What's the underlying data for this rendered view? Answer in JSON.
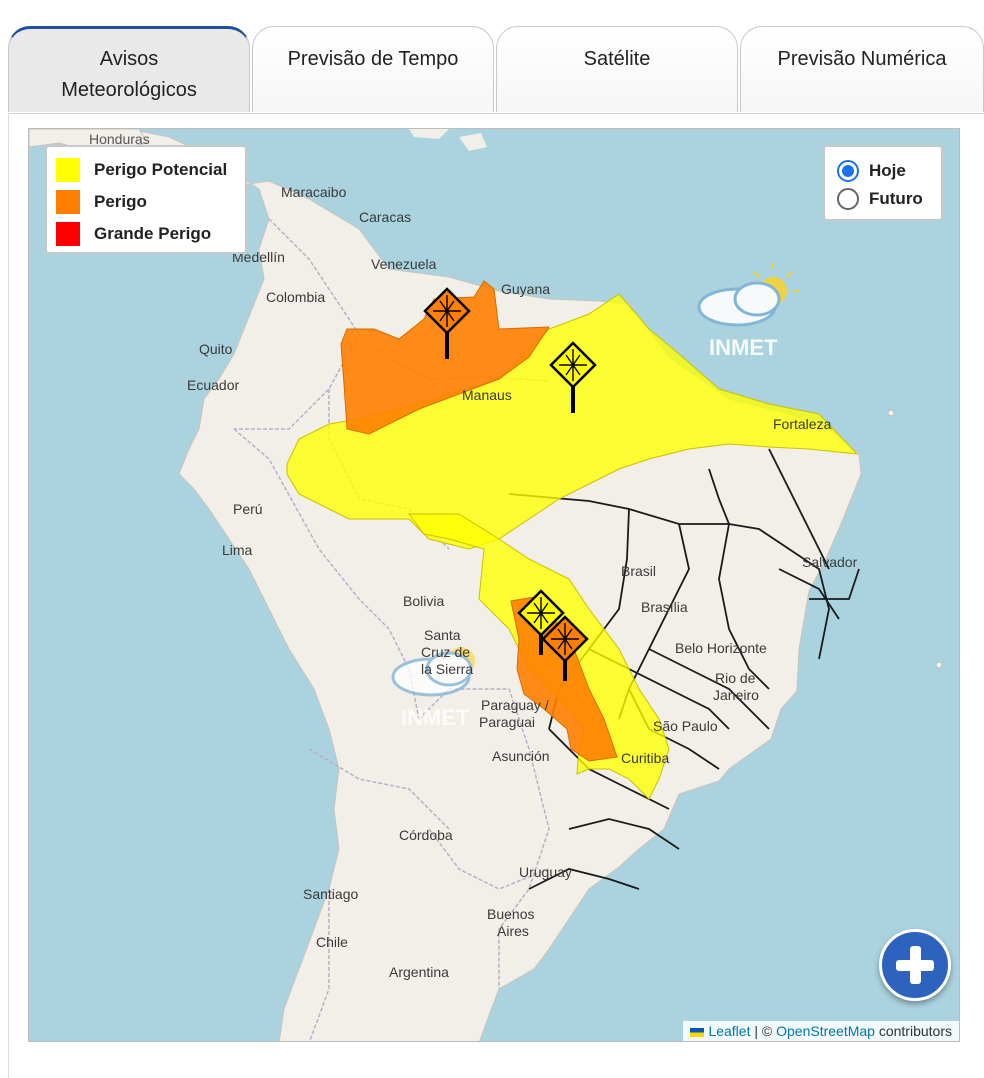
{
  "tabs": [
    {
      "label": "Avisos\nMeteorológicos",
      "active": true
    },
    {
      "label": "Previsão de Tempo",
      "active": false
    },
    {
      "label": "Satélite",
      "active": false
    },
    {
      "label": "Previsão Numérica",
      "active": false
    }
  ],
  "legend": {
    "items": [
      {
        "label": "Perigo Potencial",
        "color": "#ffff00"
      },
      {
        "label": "Perigo",
        "color": "#ff7f00"
      },
      {
        "label": "Grande Perigo",
        "color": "#ff0000"
      }
    ]
  },
  "period": {
    "options": [
      {
        "label": "Hoje",
        "checked": true
      },
      {
        "label": "Futuro",
        "checked": false
      }
    ]
  },
  "watermark": {
    "text": "INMET"
  },
  "places": {
    "honduras": "Honduras",
    "maracaibo": "Maracaibo",
    "caracas": "Caracas",
    "medellin": "Medellín",
    "venezuela": "Venezuela",
    "guyana": "Guyana",
    "colombia": "Colombia",
    "quito": "Quito",
    "ecuador": "Ecuador",
    "manaus": "Manaus",
    "fortaleza": "Fortaleza",
    "peru": "Perú",
    "lima": "Lima",
    "salvador": "Salvador",
    "brasil": "Brasil",
    "brasilia": "Brasília",
    "bolivia": "Bolivia",
    "santa_cruz_1": "Santa",
    "santa_cruz_2": "Cruz de",
    "santa_cruz_3": "la Sierra",
    "belo_horizonte": "Belo Horizonte",
    "rio_1": "Rio de",
    "rio_2": "Janeiro",
    "paraguay": "Paraguay /",
    "paraguai": "Paraguai",
    "sao_paulo": "São Paulo",
    "asuncion": "Asunción",
    "curitiba": "Curitiba",
    "cordoba": "Córdoba",
    "uruguay": "Uruguay",
    "santiago": "Santiago",
    "buenos_1": "Buenos",
    "buenos_2": "Aires",
    "chile": "Chile",
    "argentina": "Argentina"
  },
  "attribution": {
    "leaflet": "Leaflet",
    "separator": " | © ",
    "osm": "OpenStreetMap",
    "contributors": " contributors"
  }
}
